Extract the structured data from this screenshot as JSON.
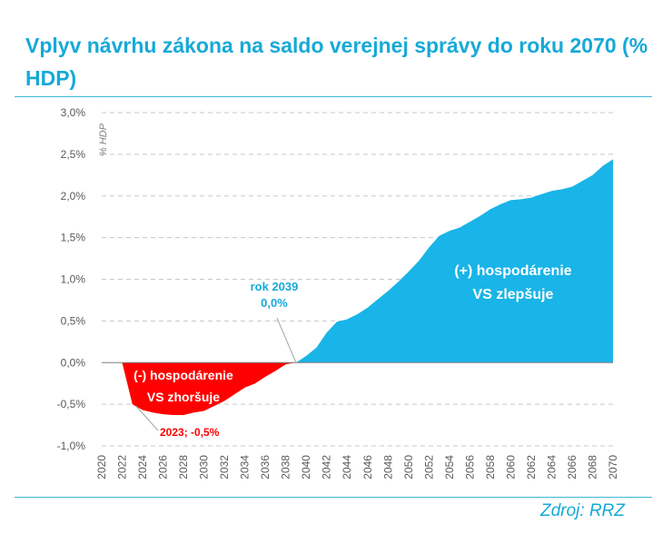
{
  "title": "Vplyv návrhu zákona na saldo verejnej správy do roku 2070 (% HDP)",
  "source": "Zdroj: RRZ",
  "colors": {
    "accent": "#17a9d8",
    "positive": "#19b4e8",
    "negative": "#ff0000",
    "grid": "#c8c8c8"
  },
  "chart_data": {
    "type": "area",
    "title": "Vplyv návrhu zákona na saldo verejnej správy do roku 2070 (% HDP)",
    "ylabel": "% HDP",
    "xlabel": "",
    "ylim": [
      -1.0,
      3.0
    ],
    "xlim": [
      2020,
      2070
    ],
    "y_ticks": [
      -1.0,
      -0.5,
      0.0,
      0.5,
      1.0,
      1.5,
      2.0,
      2.5,
      3.0
    ],
    "y_tick_labels": [
      "-1,0%",
      "-0,5%",
      "0,0%",
      "0,5%",
      "1,0%",
      "1,5%",
      "2,0%",
      "2,5%",
      "3,0%"
    ],
    "x_ticks": [
      2020,
      2022,
      2024,
      2026,
      2028,
      2030,
      2032,
      2034,
      2036,
      2038,
      2040,
      2042,
      2044,
      2046,
      2048,
      2050,
      2052,
      2054,
      2056,
      2058,
      2060,
      2062,
      2064,
      2066,
      2068,
      2070
    ],
    "x_tick_labels": [
      "2020",
      "2022",
      "2024",
      "2026",
      "2028",
      "2030",
      "2032",
      "2034",
      "2036",
      "2038",
      "2040",
      "2042",
      "2044",
      "2046",
      "2048",
      "2050",
      "2052",
      "2054",
      "2056",
      "2058",
      "2060",
      "2062",
      "2064",
      "2066",
      "2068",
      "2070"
    ],
    "grid": true,
    "x": [
      2022,
      2023,
      2024,
      2025,
      2026,
      2027,
      2028,
      2029,
      2030,
      2031,
      2032,
      2033,
      2034,
      2035,
      2036,
      2037,
      2038,
      2039,
      2040,
      2041,
      2042,
      2043,
      2044,
      2045,
      2046,
      2047,
      2048,
      2049,
      2050,
      2051,
      2052,
      2053,
      2054,
      2055,
      2056,
      2057,
      2058,
      2059,
      2060,
      2061,
      2062,
      2063,
      2064,
      2065,
      2066,
      2067,
      2068,
      2069,
      2070
    ],
    "values": [
      0.0,
      -0.5,
      -0.57,
      -0.6,
      -0.62,
      -0.63,
      -0.63,
      -0.6,
      -0.58,
      -0.52,
      -0.46,
      -0.38,
      -0.3,
      -0.25,
      -0.17,
      -0.1,
      -0.02,
      0.0,
      0.08,
      0.18,
      0.36,
      0.49,
      0.52,
      0.58,
      0.66,
      0.76,
      0.86,
      0.97,
      1.09,
      1.22,
      1.38,
      1.52,
      1.58,
      1.62,
      1.69,
      1.76,
      1.84,
      1.9,
      1.95,
      1.96,
      1.98,
      2.02,
      2.06,
      2.08,
      2.11,
      2.18,
      2.25,
      2.36,
      2.44
    ],
    "annotations": [
      {
        "text": [
          "rok 2039",
          "0,0%"
        ],
        "x": 2039,
        "y": 0.0,
        "color": "#17a9d8"
      },
      {
        "text": [
          "2023; -0,5%"
        ],
        "x": 2023,
        "y": -0.5,
        "color": "#ff0000"
      }
    ],
    "region_labels": [
      {
        "text": [
          "(+) hospodárenie",
          "VS zlepšuje"
        ],
        "color": "#ffffff",
        "sign": "positive"
      },
      {
        "text": [
          "(-) hospodárenie",
          "VS zhoršuje"
        ],
        "color": "#ffffff",
        "sign": "negative"
      }
    ]
  }
}
